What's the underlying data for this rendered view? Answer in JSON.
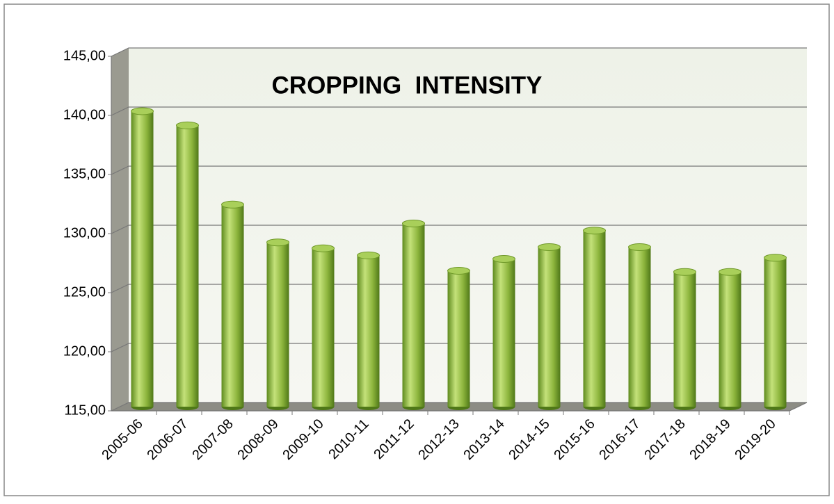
{
  "chart_data": {
    "type": "bar",
    "title": "CROPPING  INTENSITY",
    "categories": [
      "2005-06",
      "2006-07",
      "2007-08",
      "2008-09",
      "2009-10",
      "2010-11",
      "2011-12",
      "2012-13",
      "2013-14",
      "2014-15",
      "2015-16",
      "2016-17",
      "2017-18",
      "2018-19",
      "2019-20"
    ],
    "values": [
      140.0,
      138.8,
      132.1,
      128.9,
      128.4,
      127.8,
      130.5,
      126.5,
      127.5,
      128.5,
      129.9,
      128.5,
      126.4,
      126.4,
      127.6
    ],
    "color": "#8cb43c",
    "ylim": [
      115,
      145
    ],
    "yticks": [
      {
        "value": 115,
        "label": "115,00"
      },
      {
        "value": 120,
        "label": "120,00"
      },
      {
        "value": 125,
        "label": "125,00"
      },
      {
        "value": 130,
        "label": "130,00"
      },
      {
        "value": 135,
        "label": "135,00"
      },
      {
        "value": 140,
        "label": "140,00"
      },
      {
        "value": 145,
        "label": "145,00"
      }
    ],
    "grid": true
  }
}
